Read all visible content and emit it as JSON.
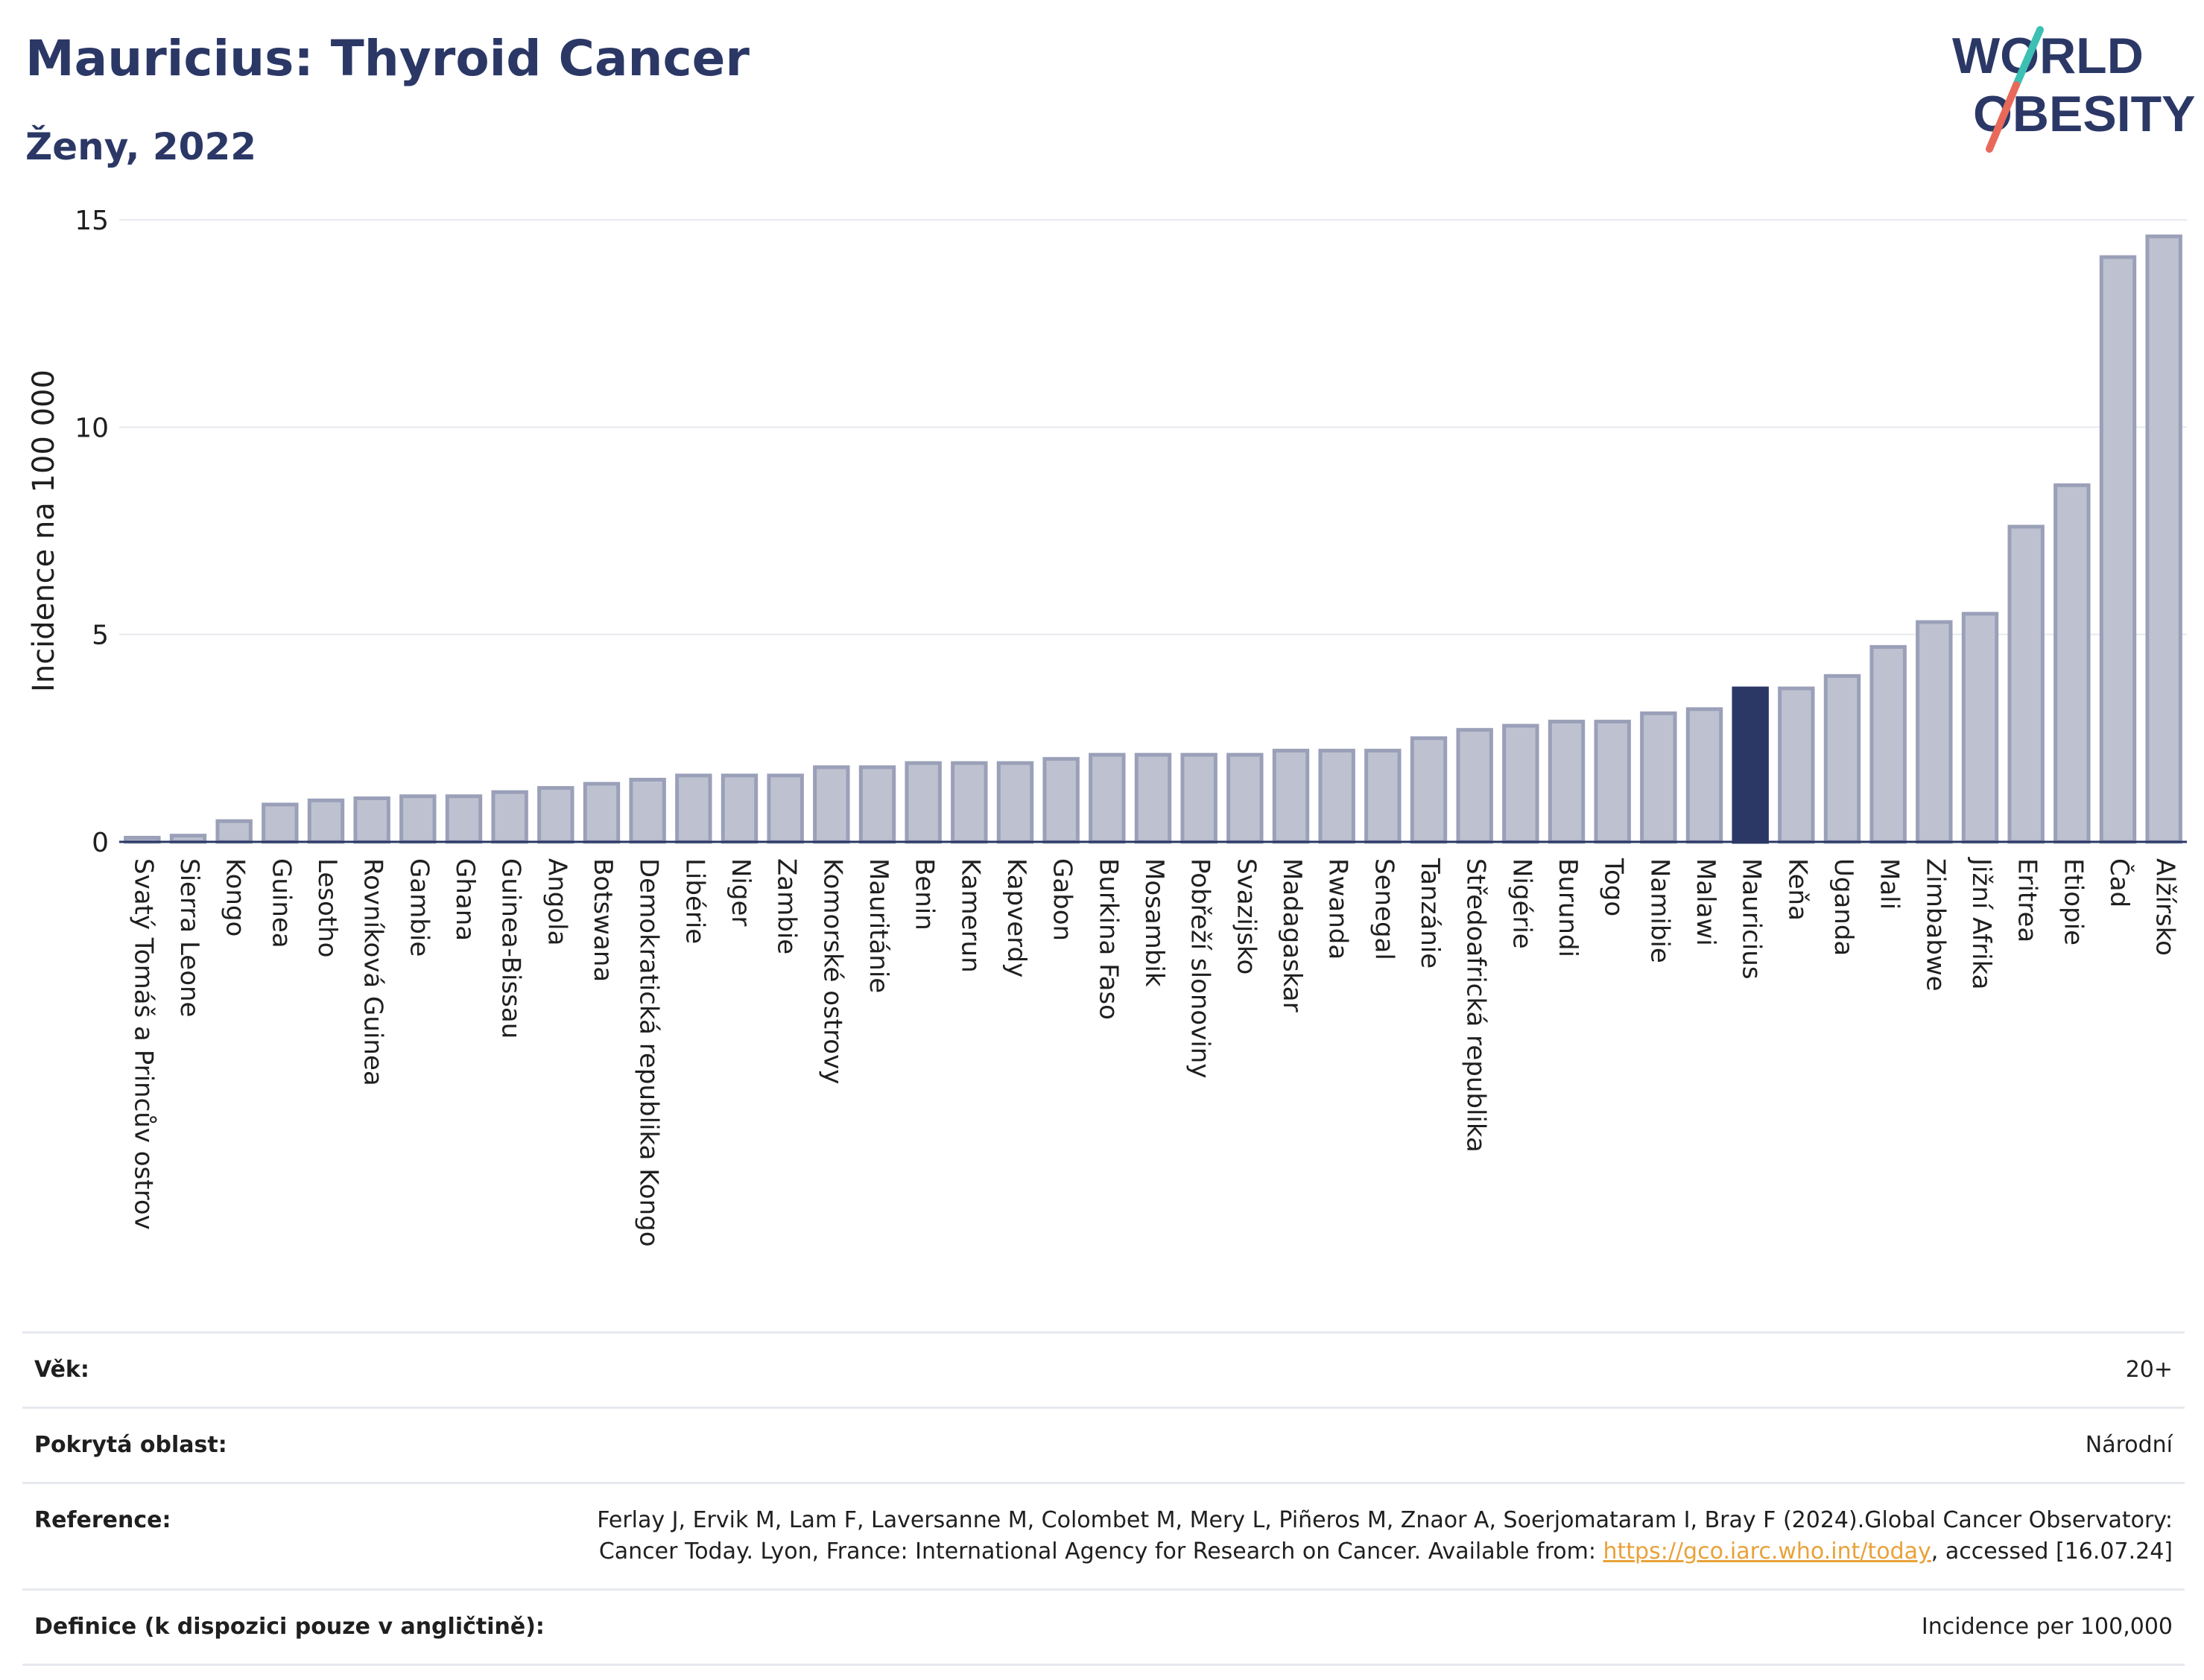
{
  "header": {
    "title": "Mauricius: Thyroid Cancer",
    "subtitle": "Ženy, 2022"
  },
  "logo": {
    "line1": "WORLD",
    "line2": "OBESITY",
    "accent_colors": [
      "#3dbfb4",
      "#e8695a"
    ],
    "text_color": "#2b3866"
  },
  "chart_data": {
    "type": "bar",
    "ylabel": "Incidence na 100 000",
    "xlabel": "",
    "ylim": [
      0,
      15
    ],
    "yticks": [
      0,
      5,
      10,
      15
    ],
    "grid": true,
    "bar_color": "#bec2d0",
    "bar_border_color": "#9aa0b8",
    "highlight_color": "#2b3866",
    "highlight_category": "Mauricius",
    "categories": [
      "Svatý Tomáš a Princův ostrov",
      "Sierra Leone",
      "Kongo",
      "Guinea",
      "Lesotho",
      "Rovníková Guinea",
      "Gambie",
      "Ghana",
      "Guinea-Bissau",
      "Angola",
      "Botswana",
      "Demokratická republika Kongo",
      "Libérie",
      "Niger",
      "Zambie",
      "Komorské ostrovy",
      "Mauritánie",
      "Benin",
      "Kamerun",
      "Kapverdy",
      "Gabon",
      "Burkina Faso",
      "Mosambik",
      "Pobřeží slonoviny",
      "Svazijsko",
      "Madagaskar",
      "Rwanda",
      "Senegal",
      "Tanzánie",
      "Středoafrická republika",
      "Nigérie",
      "Burundi",
      "Togo",
      "Namibie",
      "Malawi",
      "Mauricius",
      "Keňa",
      "Uganda",
      "Mali",
      "Zimbabwe",
      "Jižní Afrika",
      "Eritrea",
      "Etiopie",
      "Čad",
      "Alžírsko"
    ],
    "values": [
      0.1,
      0.15,
      0.5,
      0.9,
      1.0,
      1.05,
      1.1,
      1.1,
      1.2,
      1.3,
      1.4,
      1.5,
      1.6,
      1.6,
      1.6,
      1.8,
      1.8,
      1.9,
      1.9,
      1.9,
      2.0,
      2.1,
      2.1,
      2.1,
      2.1,
      2.2,
      2.2,
      2.2,
      2.5,
      2.7,
      2.8,
      2.9,
      2.9,
      3.1,
      3.2,
      3.7,
      3.7,
      4.0,
      4.7,
      5.3,
      5.5,
      7.6,
      8.6,
      14.1,
      14.6
    ]
  },
  "info": {
    "age_label": "Věk:",
    "age_value": "20+",
    "coverage_label": "Pokrytá oblast:",
    "coverage_value": "Národní",
    "reference_label": "Reference:",
    "reference_text": "Ferlay J, Ervik M, Lam F, Laversanne M, Colombet M, Mery L, Piñeros M, Znaor A, Soerjomataram I, Bray F (2024).Global Cancer Observatory: Cancer Today. Lyon, France: International Agency for Research on Cancer. Available from:",
    "reference_link": "https://gco.iarc.who.int/today",
    "reference_suffix": ", accessed [16.07.24]",
    "definition_label": "Definice (k dispozici pouze v angličtině):",
    "definition_value": "Incidence per 100,000"
  }
}
